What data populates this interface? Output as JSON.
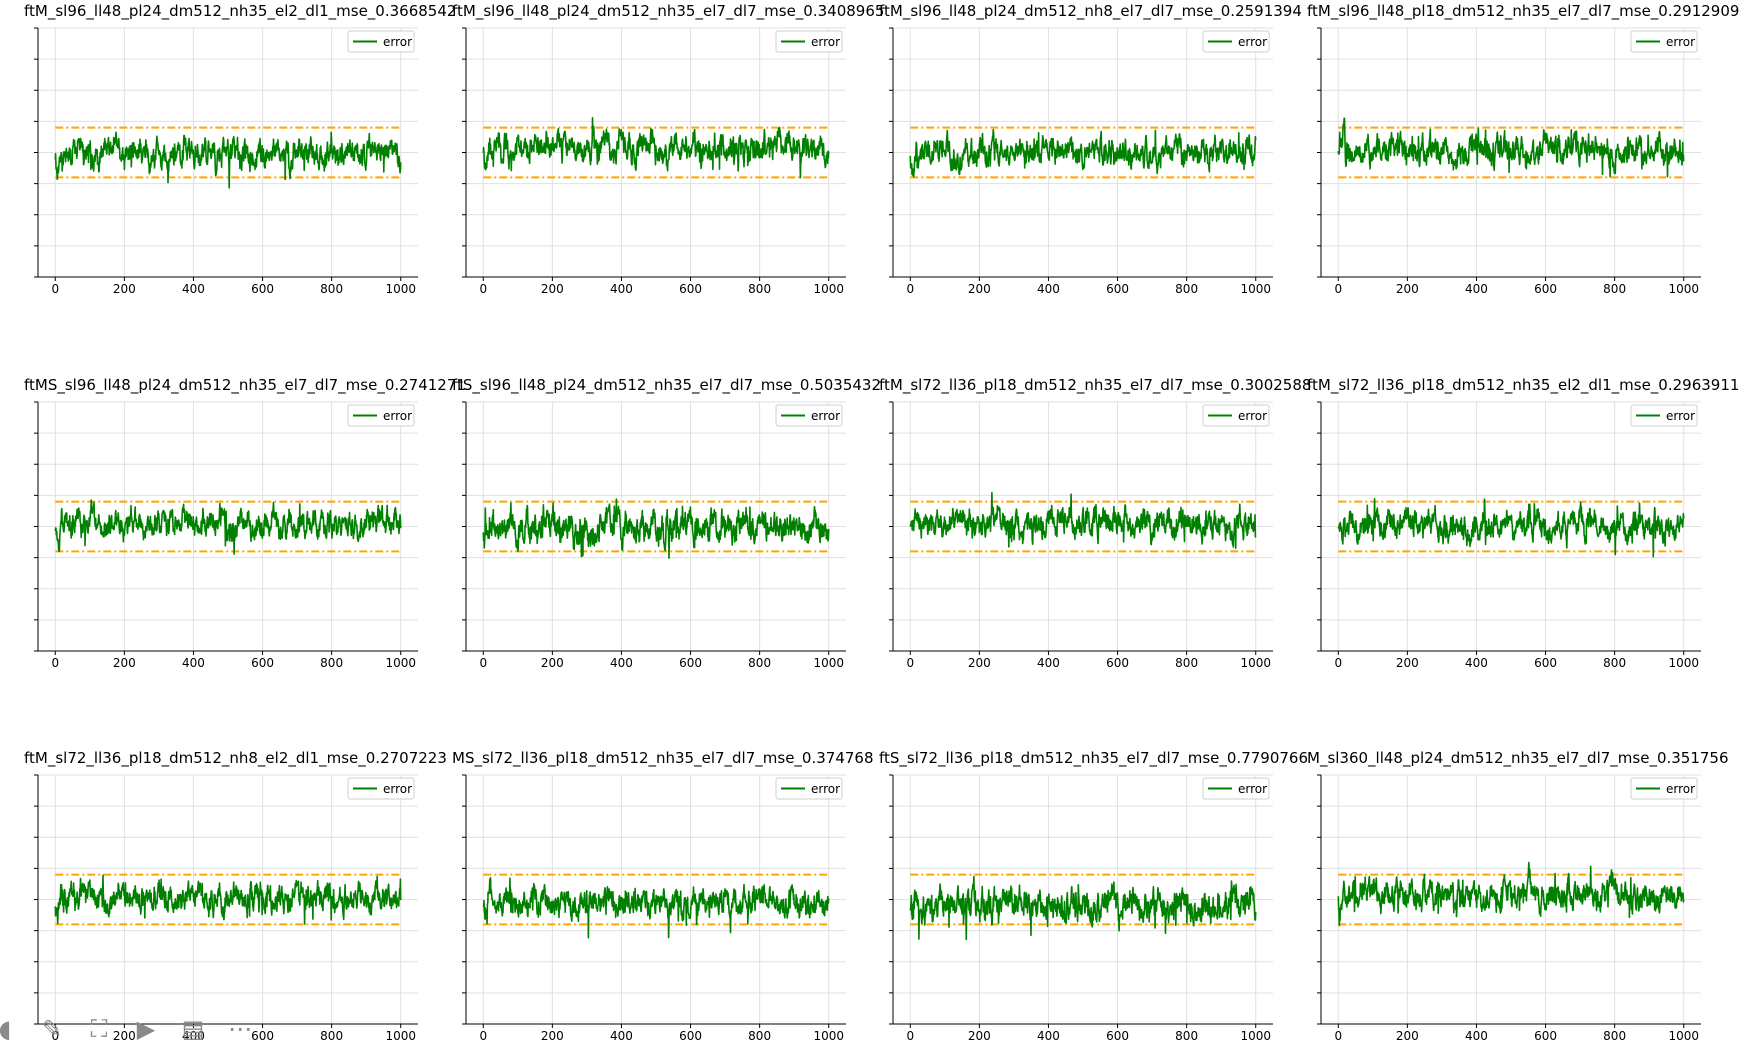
{
  "colors": {
    "error": "#008000",
    "threshold": "#FFA500",
    "grid": "#e0e0e0",
    "axis": "#000000"
  },
  "chart_data": [
    {
      "type": "line",
      "title": "ftM_sl96_ll48_pl24_dm512_nh35_el2_dl1_mse_0.3668542",
      "xticks": [
        0,
        200,
        400,
        600,
        800,
        1000
      ],
      "xlim": [
        -50,
        1050
      ],
      "ylim": [
        0,
        1
      ],
      "series": [
        {
          "name": "error",
          "n": 1000,
          "mean": 0.495,
          "amp": 0.035,
          "seed": 11
        }
      ],
      "thresholds": [
        0.6,
        0.4
      ],
      "legend": "top-right",
      "grid": true
    },
    {
      "type": "line",
      "title": "ftM_sl96_ll48_pl24_dm512_nh35_el7_dl7_mse_0.3408965",
      "xticks": [
        0,
        200,
        400,
        600,
        800,
        1000
      ],
      "xlim": [
        -50,
        1050
      ],
      "ylim": [
        0,
        1
      ],
      "series": [
        {
          "name": "error",
          "n": 1000,
          "mean": 0.52,
          "amp": 0.035,
          "seed": 23
        }
      ],
      "thresholds": [
        0.6,
        0.4
      ],
      "legend": "top-right",
      "grid": true
    },
    {
      "type": "line",
      "title": "ftM_sl96_ll48_pl24_dm512_nh8_el7_dl7_mse_0.2591394",
      "xticks": [
        0,
        200,
        400,
        600,
        800,
        1000
      ],
      "xlim": [
        -50,
        1050
      ],
      "ylim": [
        0,
        1
      ],
      "series": [
        {
          "name": "error",
          "n": 1000,
          "mean": 0.5,
          "amp": 0.035,
          "seed": 37
        }
      ],
      "thresholds": [
        0.6,
        0.4
      ],
      "legend": "top-right",
      "grid": true
    },
    {
      "type": "line",
      "title": "ftM_sl96_ll48_pl18_dm512_nh35_el7_dl7_mse_0.2912909",
      "xticks": [
        0,
        200,
        400,
        600,
        800,
        1000
      ],
      "xlim": [
        -50,
        1050
      ],
      "ylim": [
        0,
        1
      ],
      "series": [
        {
          "name": "error",
          "n": 1000,
          "mean": 0.51,
          "amp": 0.035,
          "seed": 41
        }
      ],
      "thresholds": [
        0.6,
        0.4
      ],
      "legend": "top-right",
      "grid": true
    },
    {
      "type": "line",
      "title": "ftMS_sl96_ll48_pl24_dm512_nh35_el7_dl7_mse_0.2741271",
      "xticks": [
        0,
        200,
        400,
        600,
        800,
        1000
      ],
      "xlim": [
        -50,
        1050
      ],
      "ylim": [
        0,
        1
      ],
      "series": [
        {
          "name": "error",
          "n": 1000,
          "mean": 0.51,
          "amp": 0.035,
          "seed": 53
        }
      ],
      "thresholds": [
        0.6,
        0.4
      ],
      "legend": "top-right",
      "grid": true
    },
    {
      "type": "line",
      "title": "ftS_sl96_ll48_pl24_dm512_nh35_el7_dl7_mse_0.5035432",
      "xticks": [
        0,
        200,
        400,
        600,
        800,
        1000
      ],
      "xlim": [
        -50,
        1050
      ],
      "ylim": [
        0,
        1
      ],
      "series": [
        {
          "name": "error",
          "n": 1000,
          "mean": 0.5,
          "amp": 0.04,
          "seed": 67
        }
      ],
      "thresholds": [
        0.6,
        0.4
      ],
      "legend": "top-right",
      "grid": true
    },
    {
      "type": "line",
      "title": "ftM_sl72_ll36_pl18_dm512_nh35_el7_dl7_mse_0.3002588",
      "xticks": [
        0,
        200,
        400,
        600,
        800,
        1000
      ],
      "xlim": [
        -50,
        1050
      ],
      "ylim": [
        0,
        1
      ],
      "series": [
        {
          "name": "error",
          "n": 1000,
          "mean": 0.51,
          "amp": 0.035,
          "seed": 71
        }
      ],
      "thresholds": [
        0.6,
        0.4
      ],
      "legend": "top-right",
      "grid": true
    },
    {
      "type": "line",
      "title": "ftM_sl72_ll36_pl18_dm512_nh35_el2_dl1_mse_0.2963911",
      "xticks": [
        0,
        200,
        400,
        600,
        800,
        1000
      ],
      "xlim": [
        -50,
        1050
      ],
      "ylim": [
        0,
        1
      ],
      "series": [
        {
          "name": "error",
          "n": 1000,
          "mean": 0.5,
          "amp": 0.035,
          "seed": 83
        }
      ],
      "thresholds": [
        0.6,
        0.4
      ],
      "legend": "top-right",
      "grid": true
    },
    {
      "type": "line",
      "title": "ftM_sl72_ll36_pl18_dm512_nh8_el2_dl1_mse_0.2707223",
      "xticks": [
        0,
        200,
        400,
        600,
        800,
        1000
      ],
      "xlim": [
        -50,
        1050
      ],
      "ylim": [
        0,
        1
      ],
      "series": [
        {
          "name": "error",
          "n": 1000,
          "mean": 0.5,
          "amp": 0.035,
          "seed": 97
        }
      ],
      "thresholds": [
        0.6,
        0.4
      ],
      "legend": "top-right",
      "grid": true
    },
    {
      "type": "line",
      "title": "MS_sl72_ll36_pl18_dm512_nh35_el7_dl7_mse_0.374768",
      "xticks": [
        0,
        200,
        400,
        600,
        800,
        1000
      ],
      "xlim": [
        -50,
        1050
      ],
      "ylim": [
        0,
        1
      ],
      "series": [
        {
          "name": "error",
          "n": 1000,
          "mean": 0.49,
          "amp": 0.035,
          "seed": 101
        }
      ],
      "thresholds": [
        0.6,
        0.4
      ],
      "legend": "top-right",
      "grid": true
    },
    {
      "type": "line",
      "title": "ftS_sl72_ll36_pl18_dm512_nh35_el7_dl7_mse_0.7790766",
      "xticks": [
        0,
        200,
        400,
        600,
        800,
        1000
      ],
      "xlim": [
        -50,
        1050
      ],
      "ylim": [
        0,
        1
      ],
      "series": [
        {
          "name": "error",
          "n": 1000,
          "mean": 0.48,
          "amp": 0.04,
          "seed": 113
        }
      ],
      "thresholds": [
        0.6,
        0.4
      ],
      "legend": "top-right",
      "grid": true
    },
    {
      "type": "line",
      "title": "M_sl360_ll48_pl24_dm512_nh35_el7_dl7_mse_0.351756",
      "xticks": [
        0,
        200,
        400,
        600,
        800,
        1000
      ],
      "xlim": [
        -50,
        1050
      ],
      "ylim": [
        0,
        1
      ],
      "series": [
        {
          "name": "error",
          "n": 1000,
          "mean": 0.52,
          "amp": 0.035,
          "seed": 127
        }
      ],
      "thresholds": [
        0.6,
        0.4
      ],
      "legend": "top-right",
      "grid": true
    }
  ],
  "toolbar": {
    "icons": [
      "circle-icon",
      "pencil-icon",
      "screenshot-icon",
      "camera-icon",
      "caption-icon",
      "more-icon"
    ],
    "glyphs": [
      "◖",
      "✎",
      "⛶",
      "▶",
      "▤",
      "⋯"
    ]
  }
}
